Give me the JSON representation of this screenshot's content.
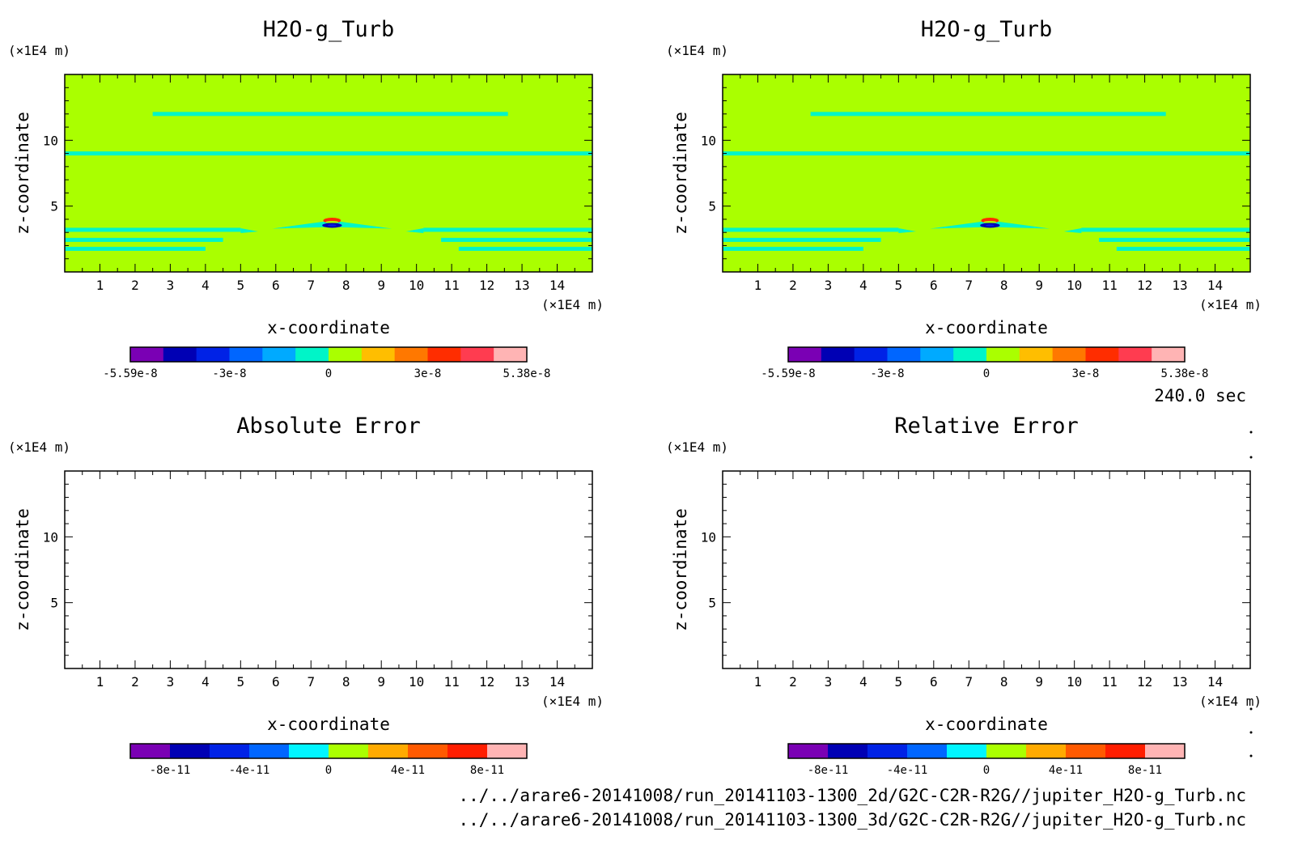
{
  "chart_data": [
    {
      "type": "heatmap",
      "title": "H2O-g_Turb",
      "xlabel": "x-coordinate",
      "ylabel": "z-coordinate",
      "x_unit": "(×1E4 m)",
      "y_unit": "(×1E4 m)",
      "xlim": [
        0,
        15
      ],
      "ylim": [
        0,
        15
      ],
      "xticks": [
        1,
        2,
        3,
        4,
        5,
        6,
        7,
        8,
        9,
        10,
        11,
        12,
        13,
        14
      ],
      "yticks": [
        5,
        10
      ],
      "colorbar": {
        "range": [
          -5.59e-08,
          5.38e-08
        ],
        "labels": [
          "-5.59e-8",
          "-3e-8",
          "0",
          "3e-8",
          "5.38e-8"
        ],
        "colors": [
          "#7a00b4",
          "#0000b4",
          "#0022e6",
          "#0066ff",
          "#00aaff",
          "#00f5c8",
          "#aaff00",
          "#ffbe00",
          "#ff7800",
          "#ff2d00",
          "#ff3c50",
          "#ffb4b4"
        ]
      },
      "background_color": "#aaff00",
      "features": [
        {
          "type": "band",
          "value": "cyan",
          "x": [
            2.5,
            12.6
          ],
          "z": 12.0
        },
        {
          "type": "band",
          "value": "cyan",
          "x": [
            0.0,
            15.0
          ],
          "z": 9.0
        },
        {
          "type": "band",
          "value": "cyan",
          "x": [
            0.0,
            5.0
          ],
          "z": [
            1.5,
            3.2
          ]
        },
        {
          "type": "band",
          "value": "cyan",
          "x": [
            10.2,
            15.0
          ],
          "z": [
            1.5,
            3.2
          ]
        },
        {
          "type": "blob",
          "x": 7.6,
          "z": 3.6,
          "min": -5.59e-08,
          "max": 5.38e-08
        }
      ]
    },
    {
      "type": "heatmap",
      "title": "H2O-g_Turb",
      "xlabel": "x-coordinate",
      "ylabel": "z-coordinate",
      "x_unit": "(×1E4 m)",
      "y_unit": "(×1E4 m)",
      "xlim": [
        0,
        15
      ],
      "ylim": [
        0,
        15
      ],
      "xticks": [
        1,
        2,
        3,
        4,
        5,
        6,
        7,
        8,
        9,
        10,
        11,
        12,
        13,
        14
      ],
      "yticks": [
        5,
        10
      ],
      "colorbar": {
        "range": [
          -5.59e-08,
          5.38e-08
        ],
        "labels": [
          "-5.59e-8",
          "-3e-8",
          "0",
          "3e-8",
          "5.38e-8"
        ],
        "colors": [
          "#7a00b4",
          "#0000b4",
          "#0022e6",
          "#0066ff",
          "#00aaff",
          "#00f5c8",
          "#aaff00",
          "#ffbe00",
          "#ff7800",
          "#ff2d00",
          "#ff3c50",
          "#ffb4b4"
        ]
      },
      "background_color": "#aaff00",
      "features": [
        {
          "type": "band",
          "value": "cyan",
          "x": [
            2.5,
            12.6
          ],
          "z": 12.0
        },
        {
          "type": "band",
          "value": "cyan",
          "x": [
            0.0,
            15.0
          ],
          "z": 9.0
        },
        {
          "type": "band",
          "value": "cyan",
          "x": [
            0.0,
            5.0
          ],
          "z": [
            1.5,
            3.2
          ]
        },
        {
          "type": "band",
          "value": "cyan",
          "x": [
            10.2,
            15.0
          ],
          "z": [
            1.5,
            3.2
          ]
        },
        {
          "type": "blob",
          "x": 7.6,
          "z": 3.6,
          "min": -5.59e-08,
          "max": 5.38e-08
        }
      ]
    },
    {
      "type": "heatmap",
      "title": "Absolute Error",
      "xlabel": "x-coordinate",
      "ylabel": "z-coordinate",
      "x_unit": "(×1E4 m)",
      "y_unit": "(×1E4 m)",
      "xlim": [
        0,
        15
      ],
      "ylim": [
        0,
        15
      ],
      "xticks": [
        1,
        2,
        3,
        4,
        5,
        6,
        7,
        8,
        9,
        10,
        11,
        12,
        13,
        14
      ],
      "yticks": [
        5,
        10
      ],
      "colorbar": {
        "range": [
          -1e-10,
          1e-10
        ],
        "labels": [
          "-8e-11",
          "-4e-11",
          "0",
          "4e-11",
          "8e-11"
        ],
        "colors": [
          "#7a00b4",
          "#0000b4",
          "#0022e6",
          "#0066ff",
          "#00f5ff",
          "#aaff00",
          "#ffaa00",
          "#ff5a00",
          "#ff1e00",
          "#ffb4b4"
        ]
      },
      "background_color": "#ffffff",
      "features": []
    },
    {
      "type": "heatmap",
      "title": "Relative Error",
      "xlabel": "x-coordinate",
      "ylabel": "z-coordinate",
      "x_unit": "(×1E4 m)",
      "y_unit": "(×1E4 m)",
      "xlim": [
        0,
        15
      ],
      "ylim": [
        0,
        15
      ],
      "xticks": [
        1,
        2,
        3,
        4,
        5,
        6,
        7,
        8,
        9,
        10,
        11,
        12,
        13,
        14
      ],
      "yticks": [
        5,
        10
      ],
      "colorbar": {
        "range": [
          -1e-10,
          1e-10
        ],
        "labels": [
          "-8e-11",
          "-4e-11",
          "0",
          "4e-11",
          "8e-11"
        ],
        "colors": [
          "#7a00b4",
          "#0000b4",
          "#0022e6",
          "#0066ff",
          "#00f5ff",
          "#aaff00",
          "#ffaa00",
          "#ff5a00",
          "#ff1e00",
          "#ffb4b4"
        ]
      },
      "background_color": "#ffffff",
      "features": []
    }
  ],
  "time_label": "240.0 sec",
  "footer": {
    "line1": "../../arare6-20141008/run_20141103-1300_2d/G2C-C2R-R2G//jupiter_H2O-g_Turb.nc",
    "line2": "../../arare6-20141008/run_20141103-1300_3d/G2C-C2R-R2G//jupiter_H2O-g_Turb.nc"
  }
}
